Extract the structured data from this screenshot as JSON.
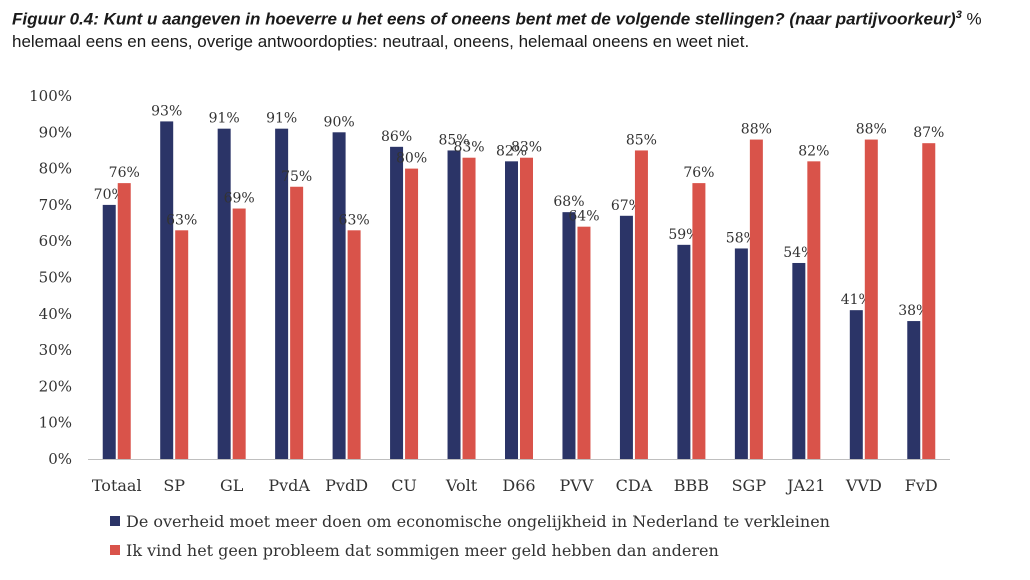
{
  "title": {
    "bold_text": "Figuur 0.4: Kunt u aangeven in hoeverre u het eens of oneens bent met de volgende stellingen? (naar partijvoorkeur)",
    "superscript": "3",
    "normal_text": " % helemaal eens en eens, overige antwoordopties: neutraal, oneens, helemaal oneens en weet niet."
  },
  "chart_data": {
    "type": "bar",
    "title": "Figuur 0.4: Kunt u aangeven in hoeverre u het eens of oneens bent met de volgende stellingen? (naar partijvoorkeur)",
    "xlabel": "",
    "ylabel": "",
    "ylim": [
      0,
      100
    ],
    "yticks": [
      "0%",
      "10%",
      "20%",
      "30%",
      "40%",
      "50%",
      "60%",
      "70%",
      "80%",
      "90%",
      "100%"
    ],
    "categories": [
      "Totaal",
      "SP",
      "GL",
      "PvdA",
      "PvdD",
      "CU",
      "Volt",
      "D66",
      "PVV",
      "CDA",
      "BBB",
      "SGP",
      "JA21",
      "VVD",
      "FvD"
    ],
    "series": [
      {
        "name": "De overheid moet meer doen om economische ongelijkheid in Nederland te verkleinen",
        "color": "#2b3467",
        "values": [
          70,
          93,
          91,
          91,
          90,
          86,
          85,
          82,
          68,
          67,
          59,
          58,
          54,
          41,
          38
        ],
        "labels": [
          "70%",
          "93%",
          "91%",
          "91%",
          "90%",
          "86%",
          "85%",
          "82%",
          "68%",
          "67%",
          "59%",
          "58%",
          "54%",
          "41%",
          "38%"
        ]
      },
      {
        "name": "Ik vind het geen probleem dat sommigen meer geld hebben dan anderen",
        "color": "#d9534a",
        "values": [
          76,
          63,
          69,
          75,
          63,
          80,
          83,
          83,
          64,
          85,
          76,
          88,
          82,
          88,
          87
        ],
        "labels": [
          "76%",
          "63%",
          "69%",
          "75%",
          "63%",
          "80%",
          "83%",
          "83%",
          "64%",
          "85%",
          "76%",
          "88%",
          "82%",
          "88%",
          "87%"
        ]
      }
    ],
    "legend_position": "bottom",
    "grid": false
  }
}
